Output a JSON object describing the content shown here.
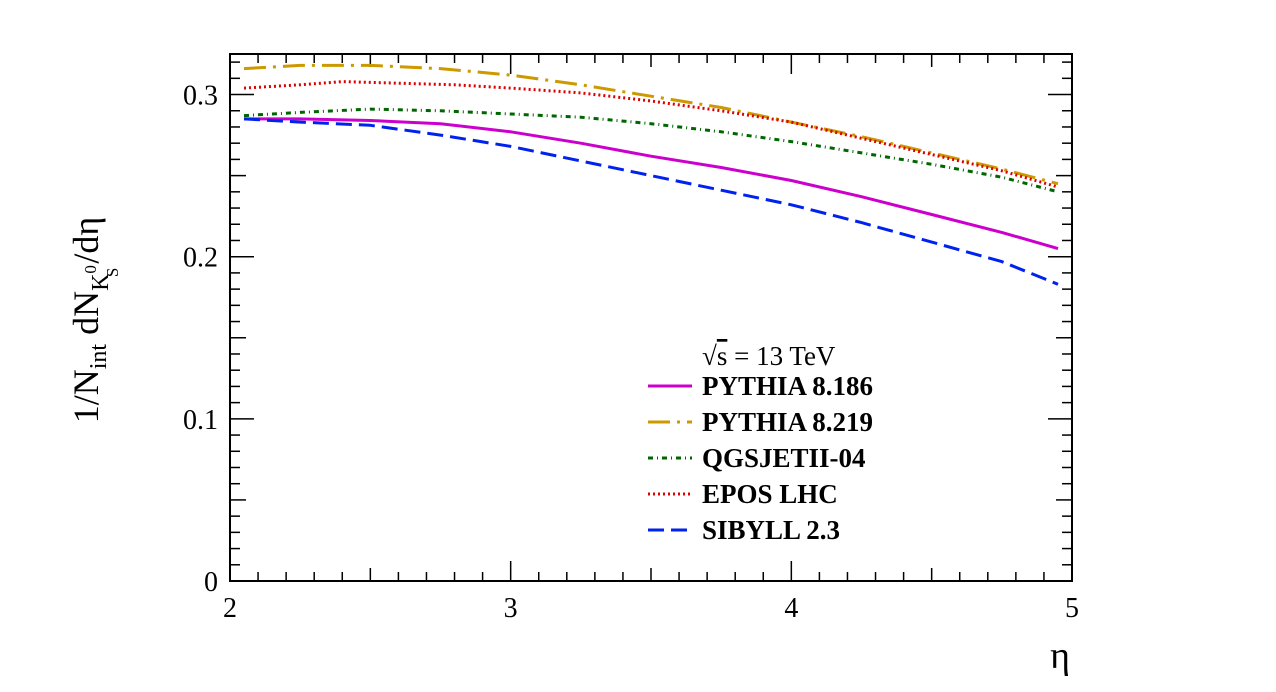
{
  "chart_data": {
    "type": "line",
    "xlabel": "η",
    "ylabel": {
      "prefix": "1/N",
      "prefix_sub": "int",
      "middle": " dN",
      "sub_main": "K",
      "sub_sub": "S",
      "sub_sup": "0",
      "suffix": "/dη"
    },
    "xlim": [
      2,
      5
    ],
    "ylim": [
      0,
      0.325
    ],
    "x_ticks": [
      2,
      3,
      4,
      5
    ],
    "x_tick_labels": [
      "2",
      "3",
      "4",
      "5"
    ],
    "y_ticks": [
      0,
      0.1,
      0.2,
      0.3
    ],
    "y_tick_labels": [
      "0",
      "0.1",
      "0.2",
      "0.3"
    ],
    "grid": false,
    "legend": {
      "header": "√s = 13 TeV",
      "header_root": "√",
      "header_radicand": "s",
      "header_rest": " = 13 TeV",
      "placement": "bottom-right"
    },
    "series": [
      {
        "name": "PYTHIA 8.186",
        "color": "#cc00cc",
        "dash": "solid",
        "x": [
          2.05,
          2.25,
          2.5,
          2.75,
          3.0,
          3.25,
          3.5,
          3.75,
          4.0,
          4.25,
          4.5,
          4.75,
          4.95
        ],
        "y": [
          0.285,
          0.285,
          0.284,
          0.282,
          0.277,
          0.27,
          0.262,
          0.255,
          0.247,
          0.237,
          0.226,
          0.215,
          0.205
        ]
      },
      {
        "name": "PYTHIA 8.219",
        "color": "#cc9900",
        "dash": "longdashdot",
        "x": [
          2.05,
          2.25,
          2.5,
          2.75,
          3.0,
          3.25,
          3.5,
          3.75,
          4.0,
          4.25,
          4.5,
          4.75,
          4.95
        ],
        "y": [
          0.316,
          0.318,
          0.318,
          0.316,
          0.312,
          0.306,
          0.299,
          0.292,
          0.283,
          0.274,
          0.264,
          0.254,
          0.245
        ]
      },
      {
        "name": "QGSJETII-04",
        "color": "#006600",
        "dash": "dashdot",
        "x": [
          2.05,
          2.25,
          2.5,
          2.75,
          3.0,
          3.25,
          3.5,
          3.75,
          4.0,
          4.25,
          4.5,
          4.75,
          4.95
        ],
        "y": [
          0.287,
          0.289,
          0.291,
          0.29,
          0.288,
          0.286,
          0.282,
          0.277,
          0.271,
          0.264,
          0.257,
          0.249,
          0.24
        ]
      },
      {
        "name": "EPOS LHC",
        "color": "#dd0000",
        "dash": "dotted",
        "x": [
          2.05,
          2.25,
          2.4,
          2.6,
          2.8,
          3.0,
          3.25,
          3.5,
          3.75,
          4.0,
          4.25,
          4.5,
          4.75,
          4.95
        ],
        "y": [
          0.304,
          0.306,
          0.308,
          0.307,
          0.306,
          0.304,
          0.301,
          0.296,
          0.29,
          0.283,
          0.273,
          0.263,
          0.253,
          0.243
        ]
      },
      {
        "name": "SIBYLL 2.3",
        "color": "#0022ee",
        "dash": "dashed",
        "x": [
          2.05,
          2.25,
          2.5,
          2.75,
          3.0,
          3.25,
          3.5,
          3.75,
          4.0,
          4.25,
          4.5,
          4.75,
          4.95
        ],
        "y": [
          0.285,
          0.283,
          0.281,
          0.275,
          0.268,
          0.259,
          0.25,
          0.241,
          0.232,
          0.221,
          0.209,
          0.197,
          0.183
        ]
      }
    ]
  }
}
